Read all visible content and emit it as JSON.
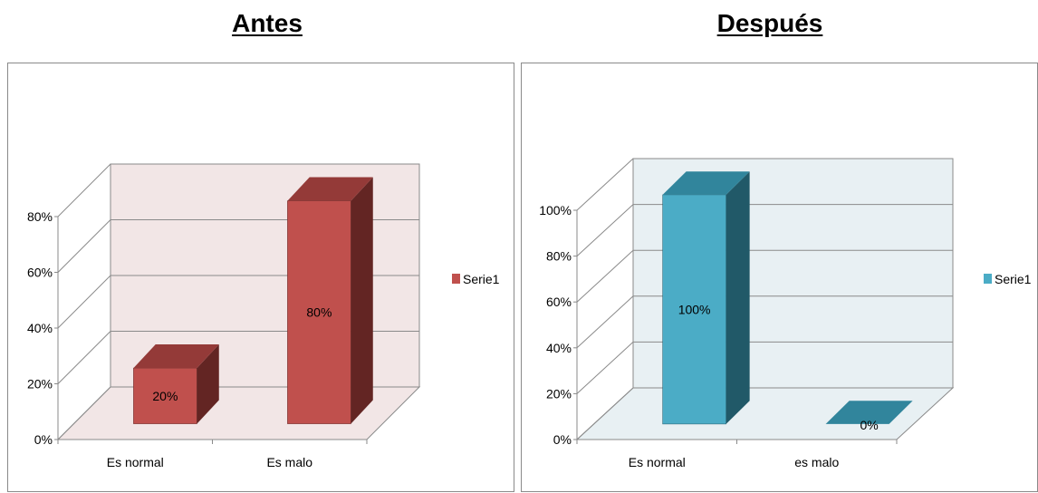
{
  "charts": [
    {
      "title": "Antes"
    },
    {
      "title": "Después"
    }
  ],
  "chart_data": [
    {
      "type": "bar",
      "title": "Antes",
      "categories": [
        "Es normal",
        "Es malo"
      ],
      "series": [
        {
          "name": "Serie1",
          "values": [
            20,
            80
          ]
        }
      ],
      "data_labels": [
        "20%",
        "80%"
      ],
      "yticks": [
        "0%",
        "20%",
        "40%",
        "60%",
        "80%"
      ],
      "ylim": [
        0,
        80
      ],
      "legend": "right",
      "grid": true,
      "colors": {
        "front": "#c0504d",
        "top": "#943a38",
        "side": "#632523",
        "wall": "#f2e6e6"
      }
    },
    {
      "type": "bar",
      "title": "Después",
      "categories": [
        "Es normal",
        "es malo"
      ],
      "series": [
        {
          "name": "Serie1",
          "values": [
            100,
            0
          ]
        }
      ],
      "data_labels": [
        "100%",
        "0%"
      ],
      "yticks": [
        "0%",
        "20%",
        "40%",
        "60%",
        "80%",
        "100%"
      ],
      "ylim": [
        0,
        100
      ],
      "legend": "right",
      "grid": true,
      "colors": {
        "front": "#4bacc6",
        "top": "#31859c",
        "side": "#215968",
        "wall": "#e8f0f3"
      }
    }
  ]
}
